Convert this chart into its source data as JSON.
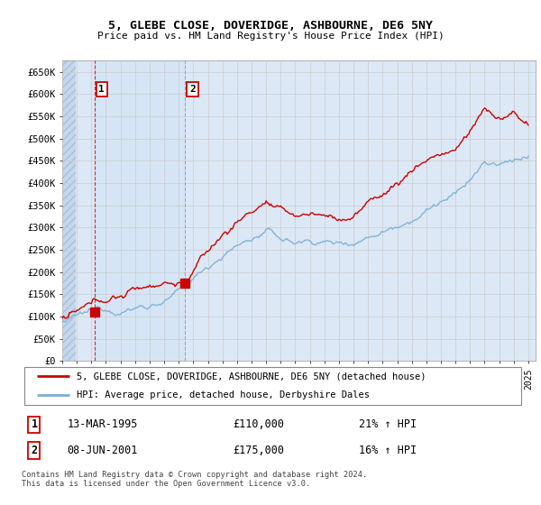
{
  "title1": "5, GLEBE CLOSE, DOVERIDGE, ASHBOURNE, DE6 5NY",
  "title2": "Price paid vs. HM Land Registry's House Price Index (HPI)",
  "ylabel_ticks": [
    "£0",
    "£50K",
    "£100K",
    "£150K",
    "£200K",
    "£250K",
    "£300K",
    "£350K",
    "£400K",
    "£450K",
    "£500K",
    "£550K",
    "£600K",
    "£650K"
  ],
  "ylim": [
    0,
    675000
  ],
  "ytick_vals": [
    0,
    50000,
    100000,
    150000,
    200000,
    250000,
    300000,
    350000,
    400000,
    450000,
    500000,
    550000,
    600000,
    650000
  ],
  "xmin_year": 1993.0,
  "xmax_year": 2025.5,
  "xtick_years": [
    1993,
    1994,
    1995,
    1996,
    1997,
    1998,
    1999,
    2000,
    2001,
    2002,
    2003,
    2004,
    2005,
    2006,
    2007,
    2008,
    2009,
    2010,
    2011,
    2012,
    2013,
    2014,
    2015,
    2016,
    2017,
    2018,
    2019,
    2020,
    2021,
    2022,
    2023,
    2024,
    2025
  ],
  "sale1_x": 1995.2,
  "sale1_y": 110000,
  "sale1_label": "1",
  "sale1_date": "13-MAR-1995",
  "sale1_price": "£110,000",
  "sale1_hpi": "21% ↑ HPI",
  "sale2_x": 2001.44,
  "sale2_y": 175000,
  "sale2_label": "2",
  "sale2_date": "08-JUN-2001",
  "sale2_price": "£175,000",
  "sale2_hpi": "16% ↑ HPI",
  "hpi_line_color": "#7bafd4",
  "sale_line_color": "#cc0000",
  "grid_color": "#cccccc",
  "bg_color": "#dce8f5",
  "hatch_bg": "#c5d8eb",
  "highlight_bg": "#d0e4f5",
  "legend_line1": "5, GLEBE CLOSE, DOVERIDGE, ASHBOURNE, DE6 5NY (detached house)",
  "legend_line2": "HPI: Average price, detached house, Derbyshire Dales",
  "footnote": "Contains HM Land Registry data © Crown copyright and database right 2024.\nThis data is licensed under the Open Government Licence v3.0.",
  "box_color": "#cc0000"
}
